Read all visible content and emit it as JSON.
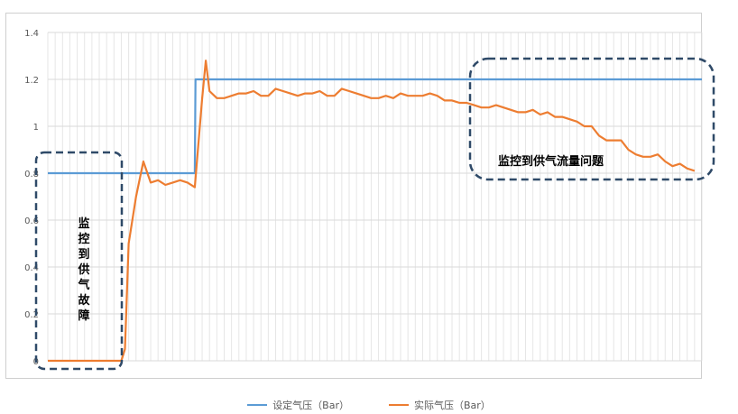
{
  "chart_data": {
    "type": "line",
    "title": "",
    "xlabel": "",
    "ylabel": "",
    "ylim": [
      0,
      1.4
    ],
    "yticks": [
      "0",
      "0.2",
      "0.4",
      "0.6",
      "0.8",
      "1",
      "1.2",
      "1.4"
    ],
    "grid": true,
    "legend_position": "bottom",
    "series": [
      {
        "name": "设定气压（Bar）",
        "color": "#5b9bd5",
        "x": [
          0,
          20,
          20.1,
          89
        ],
        "values": [
          0.8,
          0.8,
          1.2,
          1.2
        ]
      },
      {
        "name": "实际气压（Bar）",
        "color": "#ed7d31",
        "x": [
          0,
          10,
          10.5,
          11,
          12,
          13,
          14,
          15,
          16,
          17,
          18,
          19,
          20,
          21,
          21.5,
          22,
          23,
          24,
          25,
          26,
          27,
          28,
          29,
          30,
          31,
          32,
          33,
          34,
          35,
          36,
          37,
          38,
          39,
          40,
          41,
          42,
          43,
          44,
          45,
          46,
          47,
          48,
          49,
          50,
          51,
          52,
          53,
          54,
          55,
          56,
          57,
          58,
          59,
          60,
          61,
          62,
          63,
          64,
          65,
          66,
          67,
          68,
          69,
          70,
          71,
          72,
          73,
          74,
          75,
          76,
          77,
          78,
          79,
          80,
          81,
          82,
          83,
          84,
          85,
          86,
          87,
          88
        ],
        "values": [
          0,
          0,
          0.05,
          0.5,
          0.7,
          0.85,
          0.76,
          0.77,
          0.75,
          0.76,
          0.77,
          0.76,
          0.74,
          1.12,
          1.28,
          1.15,
          1.12,
          1.12,
          1.13,
          1.14,
          1.14,
          1.15,
          1.13,
          1.13,
          1.16,
          1.15,
          1.14,
          1.13,
          1.14,
          1.14,
          1.15,
          1.13,
          1.13,
          1.16,
          1.15,
          1.14,
          1.13,
          1.12,
          1.12,
          1.13,
          1.12,
          1.14,
          1.13,
          1.13,
          1.13,
          1.14,
          1.13,
          1.11,
          1.11,
          1.1,
          1.1,
          1.09,
          1.08,
          1.08,
          1.09,
          1.08,
          1.07,
          1.06,
          1.06,
          1.07,
          1.05,
          1.06,
          1.04,
          1.04,
          1.03,
          1.02,
          1.0,
          1.0,
          0.96,
          0.94,
          0.94,
          0.94,
          0.9,
          0.88,
          0.87,
          0.87,
          0.88,
          0.85,
          0.83,
          0.84,
          0.82,
          0.81
        ]
      }
    ],
    "annotations": [
      {
        "name": "fault-annotation",
        "text": "监控到供气故障"
      },
      {
        "name": "flow-annotation",
        "text": "监控到供气流量问题"
      }
    ]
  }
}
